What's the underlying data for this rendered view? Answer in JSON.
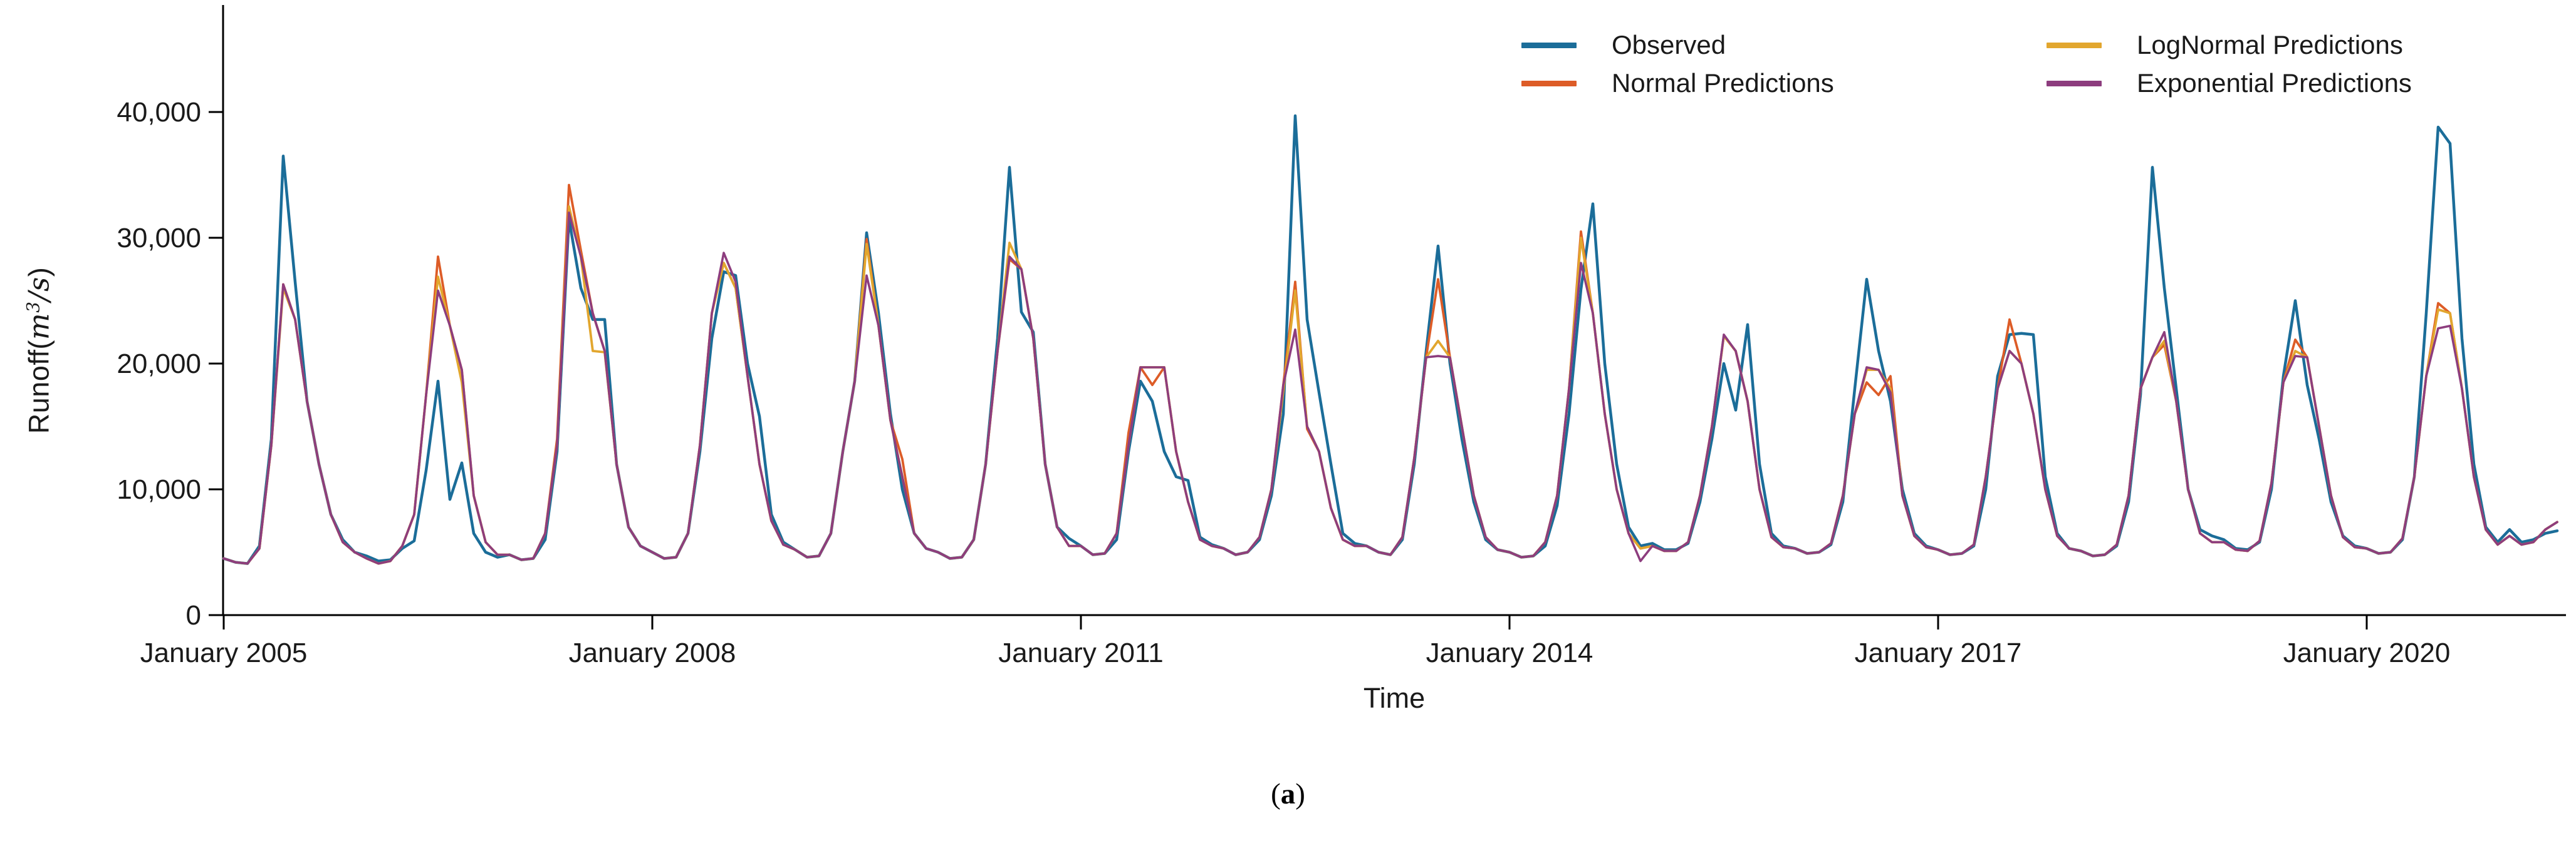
{
  "figure": {
    "background": "#ffffff",
    "caption": {
      "open": "(",
      "letter": "a",
      "close": ")"
    }
  },
  "axes": {
    "ylabel": {
      "prefix": "Runoff(",
      "var1": "m",
      "exp": "3",
      "slash": "/",
      "var2": "s",
      "suffix": ")"
    },
    "xlabel": "Time",
    "ylim": [
      0,
      40000
    ],
    "grid": false,
    "y_ticks": [
      {
        "value": 0,
        "label": "0"
      },
      {
        "value": 10000,
        "label": "10,000"
      },
      {
        "value": 20000,
        "label": "20,000"
      },
      {
        "value": 30000,
        "label": "30,000"
      },
      {
        "value": 40000,
        "label": "40,000"
      }
    ],
    "x_ticks": [
      {
        "month_index": 0,
        "label": "January 2005"
      },
      {
        "month_index": 36,
        "label": "January 2008"
      },
      {
        "month_index": 72,
        "label": "January 2011"
      },
      {
        "month_index": 108,
        "label": "January 2014"
      },
      {
        "month_index": 144,
        "label": "January 2017"
      },
      {
        "month_index": 180,
        "label": "January 2020"
      }
    ]
  },
  "legend": {
    "position": "top-right, two columns",
    "items": [
      {
        "series": "observed",
        "label": "Observed"
      },
      {
        "series": "normal",
        "label": "Normal Predictions"
      },
      {
        "series": "lognormal",
        "label": "LogNormal Predictions"
      },
      {
        "series": "exponential",
        "label": "Exponential Predictions"
      }
    ]
  },
  "chart_data": {
    "type": "line",
    "title": "",
    "xlabel": "Time",
    "ylabel": "Runoff(m3/s)",
    "x_start": "2005-01",
    "x_step": "1 month",
    "n_points": 197,
    "x_end": "2021-05",
    "ylim": [
      0,
      40000
    ],
    "series": [
      {
        "key": "observed",
        "name": "Observed",
        "color": "#1b6d99",
        "values": [
          4500,
          4200,
          4100,
          5500,
          14000,
          36500,
          26500,
          17000,
          12000,
          8000,
          6000,
          5000,
          4700,
          4300,
          4400,
          5300,
          5900,
          11500,
          18600,
          9200,
          12100,
          6500,
          5000,
          4600,
          4800,
          4400,
          4500,
          6000,
          13000,
          31500,
          26000,
          23500,
          23500,
          12000,
          7000,
          5500,
          5000,
          4500,
          4600,
          6500,
          13000,
          22000,
          27300,
          27000,
          20000,
          15800,
          8000,
          5800,
          5200,
          4600,
          4700,
          6500,
          13000,
          18600,
          30400,
          24000,
          16000,
          10000,
          6500,
          5300,
          5000,
          4500,
          4600,
          6000,
          12000,
          22000,
          35600,
          24100,
          22500,
          12000,
          7000,
          6100,
          5500,
          4800,
          4900,
          6000,
          13000,
          18600,
          17000,
          13000,
          11000,
          10700,
          6200,
          5600,
          5300,
          4800,
          5000,
          6000,
          9500,
          16000,
          39700,
          23500,
          17700,
          12000,
          6500,
          5700,
          5500,
          5000,
          4800,
          6000,
          12000,
          21000,
          29350,
          20000,
          14000,
          9000,
          6000,
          5200,
          5000,
          4600,
          4700,
          5500,
          8700,
          16000,
          25900,
          32700,
          20000,
          12000,
          7000,
          5500,
          5700,
          5200,
          5200,
          5700,
          9000,
          14000,
          20000,
          16300,
          23100,
          12000,
          6500,
          5500,
          5300,
          4900,
          5000,
          5600,
          9000,
          18000,
          26700,
          21000,
          17000,
          10000,
          6500,
          5500,
          5200,
          4800,
          4900,
          5500,
          10000,
          19000,
          22300,
          22400,
          22300,
          11000,
          6500,
          5300,
          5100,
          4700,
          4800,
          5500,
          9000,
          17500,
          35600,
          26000,
          18000,
          10000,
          6800,
          6300,
          6000,
          5300,
          5200,
          5800,
          10000,
          19000,
          25000,
          18300,
          14000,
          9000,
          6300,
          5500,
          5300,
          4900,
          5000,
          6000,
          11000,
          24000,
          38800,
          37500,
          22000,
          12000,
          7000,
          5800,
          6800,
          5800,
          6000,
          6500,
          6700
        ]
      },
      {
        "key": "normal",
        "name": "Normal Predictions",
        "color": "#dd5c27",
        "values": [
          4500,
          4200,
          4100,
          5300,
          13500,
          26300,
          23500,
          17000,
          12000,
          8000,
          5800,
          5000,
          4500,
          4100,
          4300,
          5500,
          8000,
          17500,
          28500,
          23000,
          19500,
          9500,
          5800,
          4800,
          4800,
          4400,
          4500,
          6500,
          14000,
          34200,
          29000,
          24000,
          21000,
          12000,
          7000,
          5500,
          5000,
          4500,
          4600,
          6500,
          13500,
          24000,
          28000,
          26000,
          19000,
          12000,
          7500,
          5600,
          5200,
          4600,
          4700,
          6500,
          13000,
          18600,
          29900,
          23000,
          15500,
          12400,
          6500,
          5300,
          5000,
          4500,
          4600,
          6000,
          12000,
          21000,
          28300,
          27500,
          22000,
          12000,
          7000,
          5500,
          5500,
          4800,
          4900,
          6500,
          14500,
          19700,
          18300,
          19700,
          13000,
          9000,
          6000,
          5500,
          5300,
          4800,
          5000,
          6200,
          10000,
          18300,
          26500,
          14800,
          13000,
          8500,
          6000,
          5500,
          5500,
          5000,
          4800,
          6200,
          12500,
          20500,
          26700,
          20500,
          15000,
          9500,
          6200,
          5200,
          5000,
          4600,
          4700,
          5800,
          9500,
          18000,
          30500,
          24000,
          16000,
          10000,
          6500,
          5300,
          5500,
          5100,
          5100,
          5800,
          9500,
          15000,
          22200,
          21000,
          17000,
          10000,
          6200,
          5400,
          5300,
          4900,
          5000,
          5700,
          9500,
          16000,
          18500,
          17500,
          19000,
          9500,
          6300,
          5400,
          5200,
          4800,
          4900,
          5600,
          11000,
          18000,
          23500,
          20000,
          16000,
          10000,
          6300,
          5300,
          5100,
          4700,
          4800,
          5600,
          9500,
          18000,
          20500,
          21500,
          17000,
          10000,
          6500,
          5800,
          5800,
          5200,
          5100,
          5900,
          10500,
          18500,
          21900,
          20500,
          15000,
          9500,
          6200,
          5400,
          5300,
          4900,
          5000,
          6100,
          11000,
          19000,
          24800,
          24000,
          18000,
          11000,
          6800,
          5600,
          6300,
          5600,
          5800,
          6800,
          7400
        ]
      },
      {
        "key": "lognormal",
        "name": "LogNormal Predictions",
        "color": "#e2a62e",
        "values": [
          4500,
          4200,
          4100,
          5300,
          13500,
          26000,
          23500,
          17000,
          12000,
          8000,
          5800,
          5000,
          4500,
          4100,
          4300,
          5500,
          8000,
          17500,
          26900,
          23000,
          18500,
          9500,
          5800,
          4800,
          4800,
          4400,
          4500,
          6500,
          13500,
          32500,
          28500,
          21000,
          20900,
          12000,
          7000,
          5500,
          5000,
          4500,
          4600,
          6500,
          13500,
          24000,
          28000,
          26000,
          19000,
          12000,
          7500,
          5600,
          5200,
          4600,
          4700,
          6500,
          13000,
          18600,
          29500,
          23000,
          15500,
          11000,
          6500,
          5300,
          5000,
          4500,
          4600,
          6000,
          12000,
          21000,
          29600,
          27500,
          22000,
          12000,
          7000,
          5500,
          5500,
          4800,
          4900,
          6500,
          13500,
          19700,
          19700,
          19700,
          13000,
          9000,
          6000,
          5500,
          5300,
          4800,
          5000,
          6200,
          10000,
          17800,
          25800,
          15000,
          13000,
          8500,
          6000,
          5500,
          5500,
          5000,
          4800,
          6200,
          12500,
          20500,
          21800,
          20500,
          15000,
          9500,
          6200,
          5200,
          5000,
          4600,
          4700,
          5800,
          9500,
          18000,
          30000,
          24000,
          16000,
          10000,
          6500,
          5300,
          5500,
          5100,
          5100,
          5800,
          9500,
          15000,
          22200,
          21000,
          17000,
          10000,
          6200,
          5400,
          5300,
          4900,
          5000,
          5700,
          9500,
          16000,
          19500,
          19500,
          18000,
          9500,
          6300,
          5400,
          5200,
          4800,
          4900,
          5600,
          11000,
          18000,
          21000,
          20000,
          16000,
          10000,
          6300,
          5300,
          5100,
          4700,
          4800,
          5600,
          9500,
          18000,
          20500,
          21800,
          17000,
          10000,
          6500,
          5800,
          5800,
          5200,
          5100,
          5900,
          10500,
          18500,
          21000,
          20500,
          15000,
          9500,
          6200,
          5400,
          5300,
          4900,
          5000,
          6100,
          11000,
          19000,
          24300,
          24000,
          18000,
          11000,
          6800,
          5600,
          6300,
          5600,
          5800,
          6800,
          7400
        ]
      },
      {
        "key": "exponential",
        "name": "Exponential Predictions",
        "color": "#8d3d7e",
        "values": [
          4500,
          4200,
          4100,
          5300,
          13500,
          26300,
          23500,
          17000,
          12000,
          8000,
          5800,
          5000,
          4500,
          4100,
          4300,
          5500,
          8000,
          17500,
          25800,
          23000,
          19500,
          9500,
          5800,
          4800,
          4800,
          4400,
          4500,
          6500,
          13500,
          32000,
          28500,
          24000,
          21000,
          12000,
          7000,
          5500,
          5000,
          4500,
          4600,
          6500,
          13500,
          24000,
          28800,
          26500,
          19000,
          12000,
          7500,
          5600,
          5200,
          4600,
          4700,
          6500,
          13000,
          18600,
          27000,
          23000,
          15500,
          11000,
          6500,
          5300,
          5000,
          4500,
          4600,
          6000,
          12000,
          21000,
          28500,
          27500,
          22000,
          12000,
          7000,
          5500,
          5500,
          4800,
          4900,
          6500,
          13500,
          19700,
          19700,
          19700,
          13000,
          9000,
          6000,
          5500,
          5300,
          4800,
          5000,
          6200,
          10000,
          18300,
          22700,
          15000,
          13000,
          8500,
          6000,
          5500,
          5500,
          5000,
          4800,
          6200,
          12500,
          20500,
          20600,
          20500,
          15000,
          9500,
          6200,
          5200,
          5000,
          4600,
          4700,
          5800,
          9500,
          18000,
          28000,
          24000,
          16000,
          10000,
          6500,
          4300,
          5500,
          5100,
          5100,
          5800,
          9500,
          15000,
          22300,
          21000,
          17000,
          10000,
          6200,
          5400,
          5300,
          4900,
          5000,
          5700,
          9500,
          16000,
          19700,
          19500,
          17700,
          9500,
          6300,
          5400,
          5200,
          4800,
          4900,
          5600,
          11000,
          18000,
          21000,
          20000,
          16000,
          10000,
          6300,
          5300,
          5100,
          4700,
          4800,
          5600,
          9500,
          18000,
          20500,
          22500,
          17000,
          10000,
          6500,
          5800,
          5800,
          5200,
          5100,
          5900,
          10500,
          18500,
          20600,
          20500,
          15000,
          9500,
          6200,
          5400,
          5300,
          4900,
          5000,
          6100,
          11000,
          19000,
          22800,
          23000,
          18000,
          11000,
          6800,
          5600,
          6300,
          5600,
          5800,
          6800,
          7400
        ]
      }
    ]
  }
}
